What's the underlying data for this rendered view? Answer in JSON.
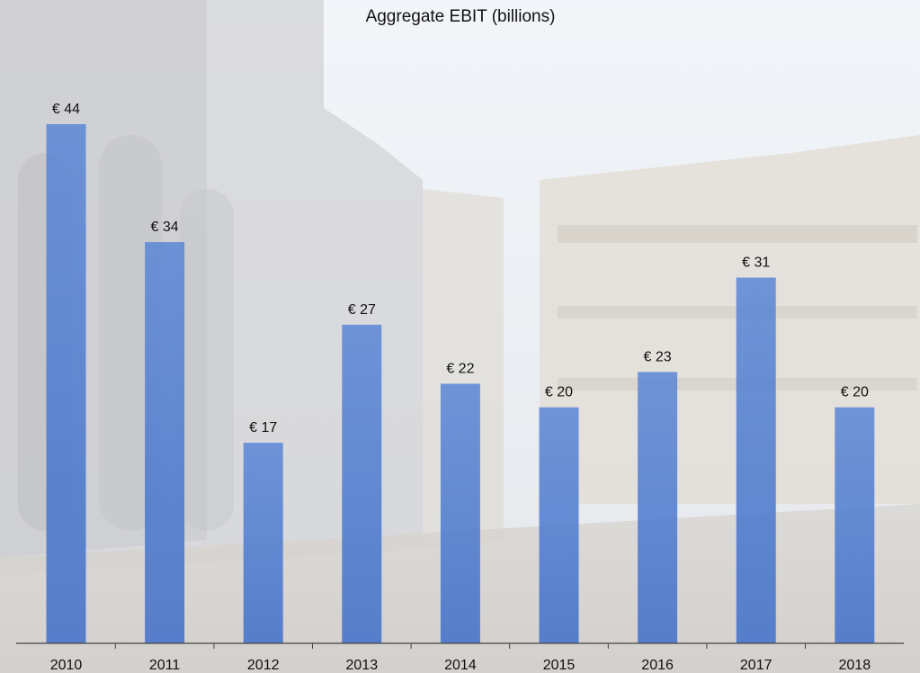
{
  "colors": {
    "bar_top": "#5b86d6",
    "bar_bottom": "#3f6fc9",
    "axis": "#444444"
  },
  "chart_data": {
    "type": "bar",
    "title": "Aggregate EBIT (billions)",
    "categories": [
      "2010",
      "2011",
      "2012",
      "2013",
      "2014",
      "2015",
      "2016",
      "2017",
      "2018"
    ],
    "values": [
      44,
      34,
      17,
      27,
      22,
      20,
      23,
      31,
      20
    ],
    "value_labels": [
      "€ 44",
      "€ 34",
      "€ 17",
      "€ 27",
      "€ 22",
      "€ 20",
      "€ 23",
      "€ 31",
      "€ 20"
    ],
    "xlabel": "",
    "ylabel": "",
    "ylim": [
      0,
      44
    ],
    "grid": false,
    "legend": "none",
    "background": "faded photo of a city square"
  }
}
